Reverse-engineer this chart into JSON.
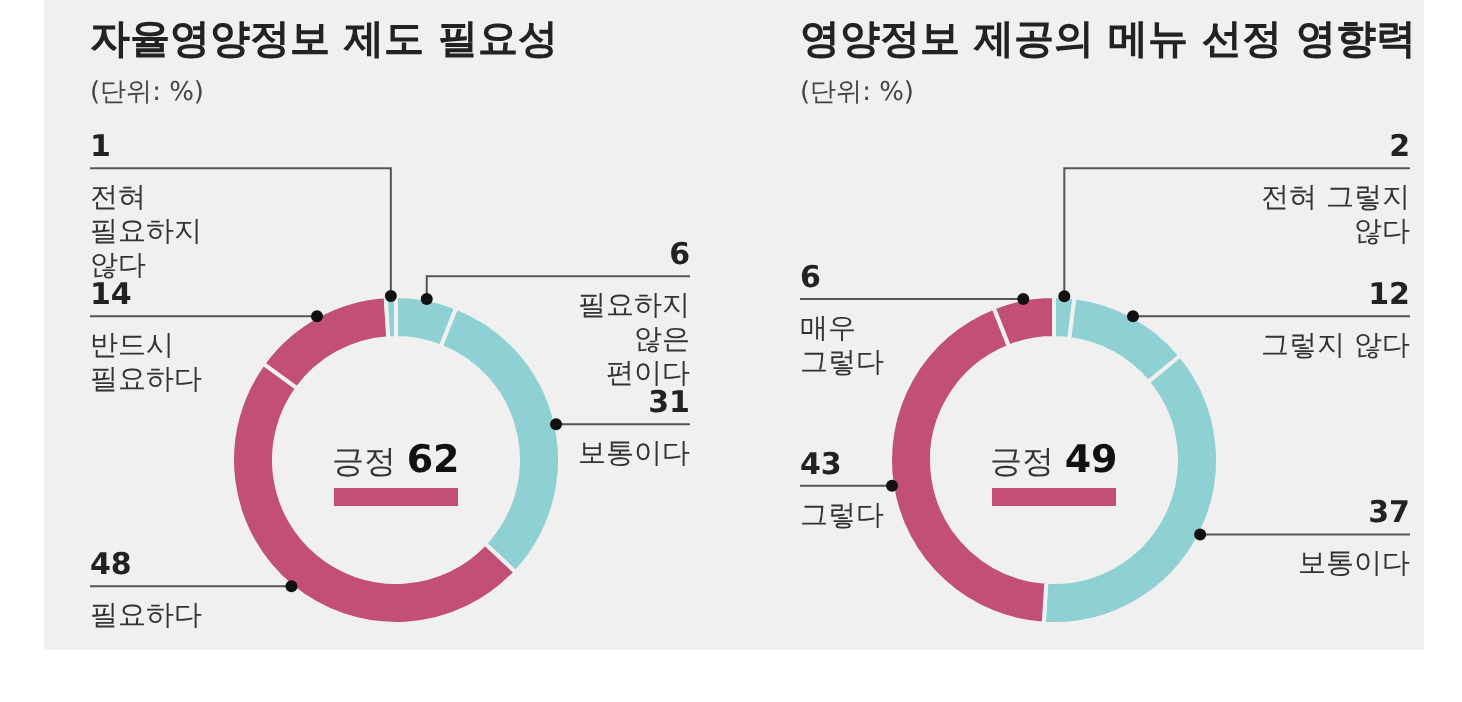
{
  "chart_data": [
    {
      "type": "donut",
      "title": "자율영양정보 제도 필요성",
      "subtitle": "(단위: %)",
      "categories": [
        "필요하지 않은 편이다",
        "보통이다",
        "필요하다",
        "반드시 필요하다",
        "전혀 필요하지 않다"
      ],
      "values": [
        6,
        31,
        48,
        14,
        1
      ],
      "colors": [
        "#8fd0d2",
        "#8fd0d2",
        "#c14f78",
        "#c14f78",
        "#8fd0d2"
      ],
      "data_labels": true,
      "annotations": [
        "긍정 62"
      ]
    },
    {
      "type": "donut",
      "title": "영양정보 제공의 메뉴 선정 영향력",
      "subtitle": "(단위: %)",
      "categories": [
        "전혀 그렇지 않다",
        "그렇지 않다",
        "보통이다",
        "그렇다",
        "매우 그렇다"
      ],
      "values": [
        2,
        12,
        37,
        43,
        6
      ],
      "colors": [
        "#8fd0d2",
        "#8fd0d2",
        "#8fd0d2",
        "#c14f78",
        "#c14f78"
      ],
      "data_labels": true,
      "annotations": [
        "긍정 49"
      ]
    }
  ]
}
